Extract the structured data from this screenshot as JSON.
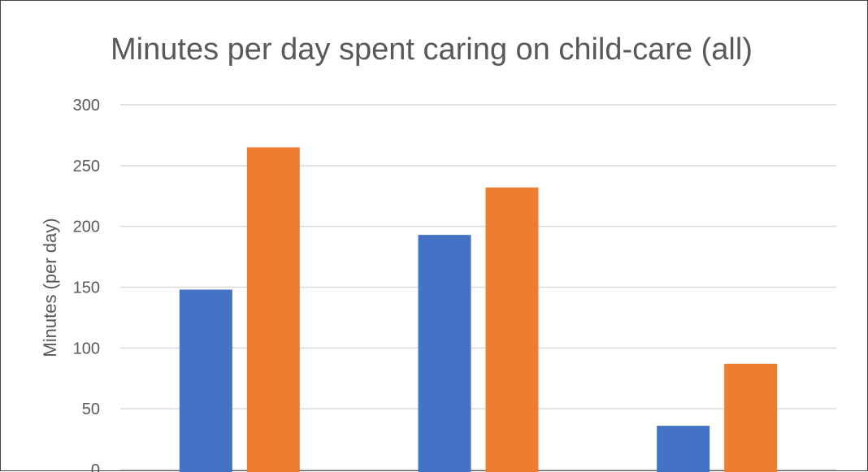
{
  "chart_data": {
    "type": "bar",
    "title": "Minutes per day spent caring on child-care (all)",
    "ylabel": "Minutes (per day)",
    "xlabel": "",
    "ylim": [
      0,
      300
    ],
    "yticks": [
      "0",
      "50",
      "100",
      "150",
      "200",
      "250",
      "300"
    ],
    "categories": [
      "",
      "",
      ""
    ],
    "series": [
      {
        "color": "#4472C4",
        "values": [
          148,
          193,
          36
        ]
      },
      {
        "color": "#ED7D31",
        "values": [
          265,
          232,
          87
        ]
      }
    ],
    "grid": true,
    "legend": "none"
  }
}
